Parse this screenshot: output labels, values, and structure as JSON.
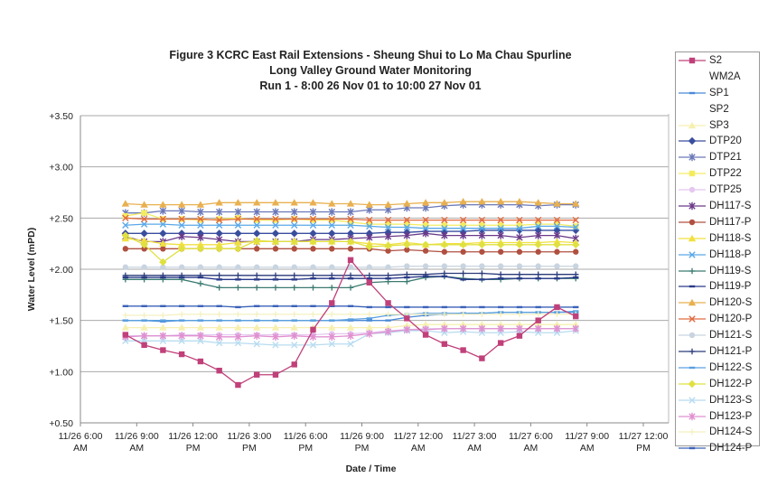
{
  "chart_data": {
    "type": "line",
    "title_lines": [
      "Figure 3 KCRC East Rail Extensions - Sheung Shui to Lo Ma Chau Spurline",
      "Long Valley Ground Water Monitoring",
      "Run 1 - 8:00 26 Nov 01 to 10:00 27 Nov 01"
    ],
    "xlabel": "Date / Time",
    "ylabel": "Water Level (mPD)",
    "ylim": [
      0.5,
      3.5
    ],
    "yticks": [
      "+0.50",
      "+1.00",
      "+1.50",
      "+2.00",
      "+2.50",
      "+3.00",
      "+3.50"
    ],
    "ytick_values": [
      0.5,
      1.0,
      1.5,
      2.0,
      2.5,
      3.0,
      3.5
    ],
    "xlim_hours_since_11_26_0600": [
      0,
      30
    ],
    "xticks": [
      [
        "11/26 6:00",
        "AM"
      ],
      [
        "11/26 9:00",
        "AM"
      ],
      [
        "11/26 12:00",
        "PM"
      ],
      [
        "11/26 3:00",
        "PM"
      ],
      [
        "11/26 6:00",
        "PM"
      ],
      [
        "11/26 9:00",
        "PM"
      ],
      [
        "11/27 12:00",
        "AM"
      ],
      [
        "11/27 3:00",
        "AM"
      ],
      [
        "11/27 6:00",
        "AM"
      ],
      [
        "11/27 9:00",
        "AM"
      ],
      [
        "11/27 12:00",
        "PM"
      ]
    ],
    "grid": "horizontal",
    "legend_position": "right",
    "x_hours": [
      2.4,
      3.4,
      4.4,
      5.4,
      6.4,
      7.4,
      8.4,
      9.4,
      10.4,
      11.4,
      12.4,
      13.4,
      14.4,
      15.4,
      16.4,
      17.4,
      18.4,
      19.4,
      20.4,
      21.4,
      22.4,
      23.4,
      24.4,
      25.4,
      26.4
    ],
    "series": [
      {
        "name": "S2",
        "color": "#c0407a",
        "marker": "square",
        "values": [
          1.36,
          1.26,
          1.21,
          1.17,
          1.1,
          1.01,
          0.87,
          0.97,
          0.97,
          1.07,
          1.41,
          1.67,
          2.09,
          1.87,
          1.67,
          1.52,
          1.36,
          1.27,
          1.21,
          1.13,
          1.28,
          1.35,
          1.5,
          1.63,
          1.54
        ]
      },
      {
        "name": "WM2A",
        "color": "#f4f4f4",
        "marker": "none",
        "values": []
      },
      {
        "name": "SP1",
        "color": "#4a8ad8",
        "marker": "dash",
        "values": [
          1.5,
          1.5,
          1.49,
          1.5,
          1.5,
          1.5,
          1.5,
          1.5,
          1.5,
          1.5,
          1.5,
          1.5,
          1.5,
          1.5,
          1.5,
          1.53,
          1.55,
          1.56,
          1.57,
          1.57,
          1.58,
          1.58,
          1.58,
          1.58,
          1.58
        ]
      },
      {
        "name": "SP2",
        "color": "#f4f4f4",
        "marker": "none",
        "values": []
      },
      {
        "name": "SP3",
        "color": "#f6f0b0",
        "marker": "triangle",
        "values": [
          1.43,
          1.43,
          1.43,
          1.43,
          1.43,
          1.43,
          1.43,
          1.43,
          1.43,
          1.43,
          1.43,
          1.43,
          1.43,
          1.43,
          1.43,
          1.45,
          1.46,
          1.46,
          1.46,
          1.46,
          1.46,
          1.46,
          1.46,
          1.46,
          1.46
        ]
      },
      {
        "name": "DTP20",
        "color": "#3a4e9e",
        "marker": "diamond",
        "values": [
          2.35,
          2.35,
          2.35,
          2.35,
          2.35,
          2.35,
          2.35,
          2.35,
          2.35,
          2.35,
          2.35,
          2.35,
          2.35,
          2.35,
          2.36,
          2.36,
          2.37,
          2.37,
          2.37,
          2.38,
          2.38,
          2.38,
          2.38,
          2.38,
          2.38
        ]
      },
      {
        "name": "DTP21",
        "color": "#6a78b8",
        "marker": "star",
        "values": [
          2.55,
          2.55,
          2.57,
          2.57,
          2.56,
          2.56,
          2.56,
          2.56,
          2.56,
          2.56,
          2.56,
          2.56,
          2.56,
          2.58,
          2.58,
          2.6,
          2.6,
          2.62,
          2.63,
          2.63,
          2.63,
          2.63,
          2.62,
          2.63,
          2.63
        ]
      },
      {
        "name": "DTP22",
        "color": "#f4ec60",
        "marker": "square",
        "values": [
          2.52,
          2.55,
          2.49,
          2.49,
          2.48,
          2.49,
          2.5,
          2.48,
          2.48,
          2.49,
          2.48,
          2.48,
          2.46,
          2.44,
          2.44,
          2.44,
          2.43,
          2.43,
          2.43,
          2.43,
          2.43,
          2.43,
          2.44,
          2.44,
          2.42
        ]
      },
      {
        "name": "DTP25",
        "color": "#e4c8f0",
        "marker": "circle",
        "values": [
          1.35,
          1.35,
          1.35,
          1.36,
          1.36,
          1.36,
          1.36,
          1.36,
          1.36,
          1.36,
          1.36,
          1.37,
          1.37,
          1.38,
          1.4,
          1.41,
          1.42,
          1.42,
          1.42,
          1.42,
          1.42,
          1.42,
          1.42,
          1.42,
          1.42
        ]
      },
      {
        "name": "DH117-S",
        "color": "#6a3a8a",
        "marker": "star",
        "values": [
          2.32,
          2.27,
          2.27,
          2.32,
          2.31,
          2.29,
          2.27,
          2.27,
          2.27,
          2.27,
          2.29,
          2.29,
          2.3,
          2.31,
          2.32,
          2.33,
          2.35,
          2.33,
          2.33,
          2.33,
          2.33,
          2.31,
          2.33,
          2.33,
          2.3
        ]
      },
      {
        "name": "DH117-P",
        "color": "#b05040",
        "marker": "circle",
        "values": [
          2.2,
          2.2,
          2.2,
          2.2,
          2.2,
          2.2,
          2.2,
          2.2,
          2.2,
          2.2,
          2.2,
          2.2,
          2.2,
          2.2,
          2.18,
          2.19,
          2.18,
          2.17,
          2.17,
          2.17,
          2.17,
          2.17,
          2.17,
          2.17,
          2.17
        ]
      },
      {
        "name": "DH118-S",
        "color": "#f0e040",
        "marker": "triangle",
        "values": [
          2.3,
          2.28,
          2.25,
          2.24,
          2.24,
          2.24,
          2.26,
          2.27,
          2.27,
          2.27,
          2.27,
          2.27,
          2.27,
          2.25,
          2.24,
          2.26,
          2.24,
          2.25,
          2.25,
          2.26,
          2.26,
          2.26,
          2.26,
          2.27,
          2.26
        ]
      },
      {
        "name": "DH118-P",
        "color": "#5aa8e8",
        "marker": "x",
        "values": [
          2.43,
          2.44,
          2.44,
          2.43,
          2.43,
          2.43,
          2.43,
          2.43,
          2.43,
          2.43,
          2.43,
          2.43,
          2.43,
          2.42,
          2.41,
          2.41,
          2.4,
          2.4,
          2.4,
          2.4,
          2.4,
          2.4,
          2.42,
          2.42,
          2.41
        ]
      },
      {
        "name": "DH119-S",
        "color": "#3a7a70",
        "marker": "plus",
        "values": [
          1.9,
          1.9,
          1.9,
          1.9,
          1.86,
          1.82,
          1.82,
          1.82,
          1.82,
          1.82,
          1.82,
          1.82,
          1.82,
          1.87,
          1.88,
          1.88,
          1.92,
          1.93,
          1.91,
          1.9,
          1.9,
          1.91,
          1.91,
          1.91,
          1.91
        ]
      },
      {
        "name": "DH119-P",
        "color": "#2a3a8a",
        "marker": "dash",
        "values": [
          1.92,
          1.92,
          1.92,
          1.92,
          1.92,
          1.9,
          1.9,
          1.9,
          1.9,
          1.9,
          1.91,
          1.91,
          1.91,
          1.91,
          1.91,
          1.92,
          1.93,
          1.93,
          1.9,
          1.9,
          1.91,
          1.91,
          1.91,
          1.91,
          1.92
        ]
      },
      {
        "name": "DH120-S",
        "color": "#e8b050",
        "marker": "triangle",
        "values": [
          2.64,
          2.63,
          2.63,
          2.63,
          2.63,
          2.65,
          2.65,
          2.65,
          2.65,
          2.65,
          2.65,
          2.64,
          2.64,
          2.63,
          2.63,
          2.64,
          2.65,
          2.65,
          2.66,
          2.66,
          2.66,
          2.66,
          2.65,
          2.64,
          2.64
        ]
      },
      {
        "name": "DH120-P",
        "color": "#e06a40",
        "marker": "x",
        "values": [
          2.5,
          2.49,
          2.49,
          2.49,
          2.49,
          2.48,
          2.49,
          2.49,
          2.49,
          2.49,
          2.49,
          2.49,
          2.49,
          2.48,
          2.48,
          2.48,
          2.48,
          2.48,
          2.48,
          2.48,
          2.48,
          2.48,
          2.48,
          2.48,
          2.48
        ]
      },
      {
        "name": "DH121-S",
        "color": "#c8d4e0",
        "marker": "circle",
        "values": [
          2.02,
          2.02,
          2.02,
          2.02,
          2.02,
          2.02,
          2.02,
          2.02,
          2.02,
          2.02,
          2.02,
          2.02,
          2.02,
          2.02,
          2.02,
          2.03,
          2.03,
          2.03,
          2.03,
          2.03,
          2.03,
          2.03,
          2.03,
          2.03,
          2.03
        ]
      },
      {
        "name": "DH121-P",
        "color": "#2a3a7a",
        "marker": "plus",
        "values": [
          1.94,
          1.94,
          1.94,
          1.94,
          1.94,
          1.94,
          1.94,
          1.94,
          1.94,
          1.94,
          1.94,
          1.94,
          1.94,
          1.94,
          1.94,
          1.95,
          1.95,
          1.96,
          1.96,
          1.96,
          1.95,
          1.95,
          1.95,
          1.95,
          1.95
        ]
      },
      {
        "name": "DH122-S",
        "color": "#5aa0e0",
        "marker": "dash",
        "values": [
          1.5,
          1.5,
          1.5,
          1.5,
          1.5,
          1.5,
          1.5,
          1.5,
          1.5,
          1.5,
          1.5,
          1.5,
          1.51,
          1.52,
          1.55,
          1.56,
          1.57,
          1.57,
          1.57,
          1.57,
          1.58,
          1.58,
          1.58,
          1.58,
          1.59
        ]
      },
      {
        "name": "DH122-P",
        "color": "#e0e040",
        "marker": "diamond",
        "values": [
          2.33,
          2.24,
          2.07,
          2.2,
          2.2,
          2.2,
          2.2,
          2.28,
          2.27,
          2.27,
          2.27,
          2.27,
          2.27,
          2.22,
          2.23,
          2.24,
          2.24,
          2.24,
          2.24,
          2.24,
          2.24,
          2.24,
          2.24,
          2.24,
          2.24
        ]
      },
      {
        "name": "DH123-S",
        "color": "#b8dcf0",
        "marker": "x",
        "values": [
          1.3,
          1.3,
          1.3,
          1.3,
          1.3,
          1.28,
          1.28,
          1.27,
          1.26,
          1.26,
          1.26,
          1.27,
          1.27,
          1.37,
          1.38,
          1.4,
          1.4,
          1.38,
          1.39,
          1.38,
          1.38,
          1.39,
          1.38,
          1.38,
          1.4
        ]
      },
      {
        "name": "DH123-P",
        "color": "#e090d0",
        "marker": "star",
        "values": [
          1.34,
          1.35,
          1.35,
          1.35,
          1.35,
          1.34,
          1.34,
          1.35,
          1.34,
          1.35,
          1.34,
          1.34,
          1.35,
          1.37,
          1.39,
          1.41,
          1.41,
          1.42,
          1.42,
          1.42,
          1.42,
          1.42,
          1.42,
          1.42,
          1.42
        ]
      },
      {
        "name": "DH124-S",
        "color": "#f4f0c0",
        "marker": "plus",
        "values": [
          1.55,
          1.55,
          1.55,
          1.56,
          1.56,
          1.56,
          1.56,
          1.56,
          1.56,
          1.56,
          1.56,
          1.56,
          1.56,
          1.56,
          1.56,
          1.56,
          1.56,
          1.56,
          1.56,
          1.56,
          1.56,
          1.56,
          1.56,
          1.56,
          1.56
        ]
      },
      {
        "name": "DH124-P",
        "color": "#3a62b8",
        "marker": "dash",
        "values": [
          1.64,
          1.64,
          1.64,
          1.64,
          1.64,
          1.64,
          1.63,
          1.64,
          1.64,
          1.64,
          1.64,
          1.64,
          1.64,
          1.63,
          1.63,
          1.63,
          1.63,
          1.63,
          1.63,
          1.63,
          1.63,
          1.63,
          1.63,
          1.63,
          1.63
        ]
      }
    ]
  }
}
